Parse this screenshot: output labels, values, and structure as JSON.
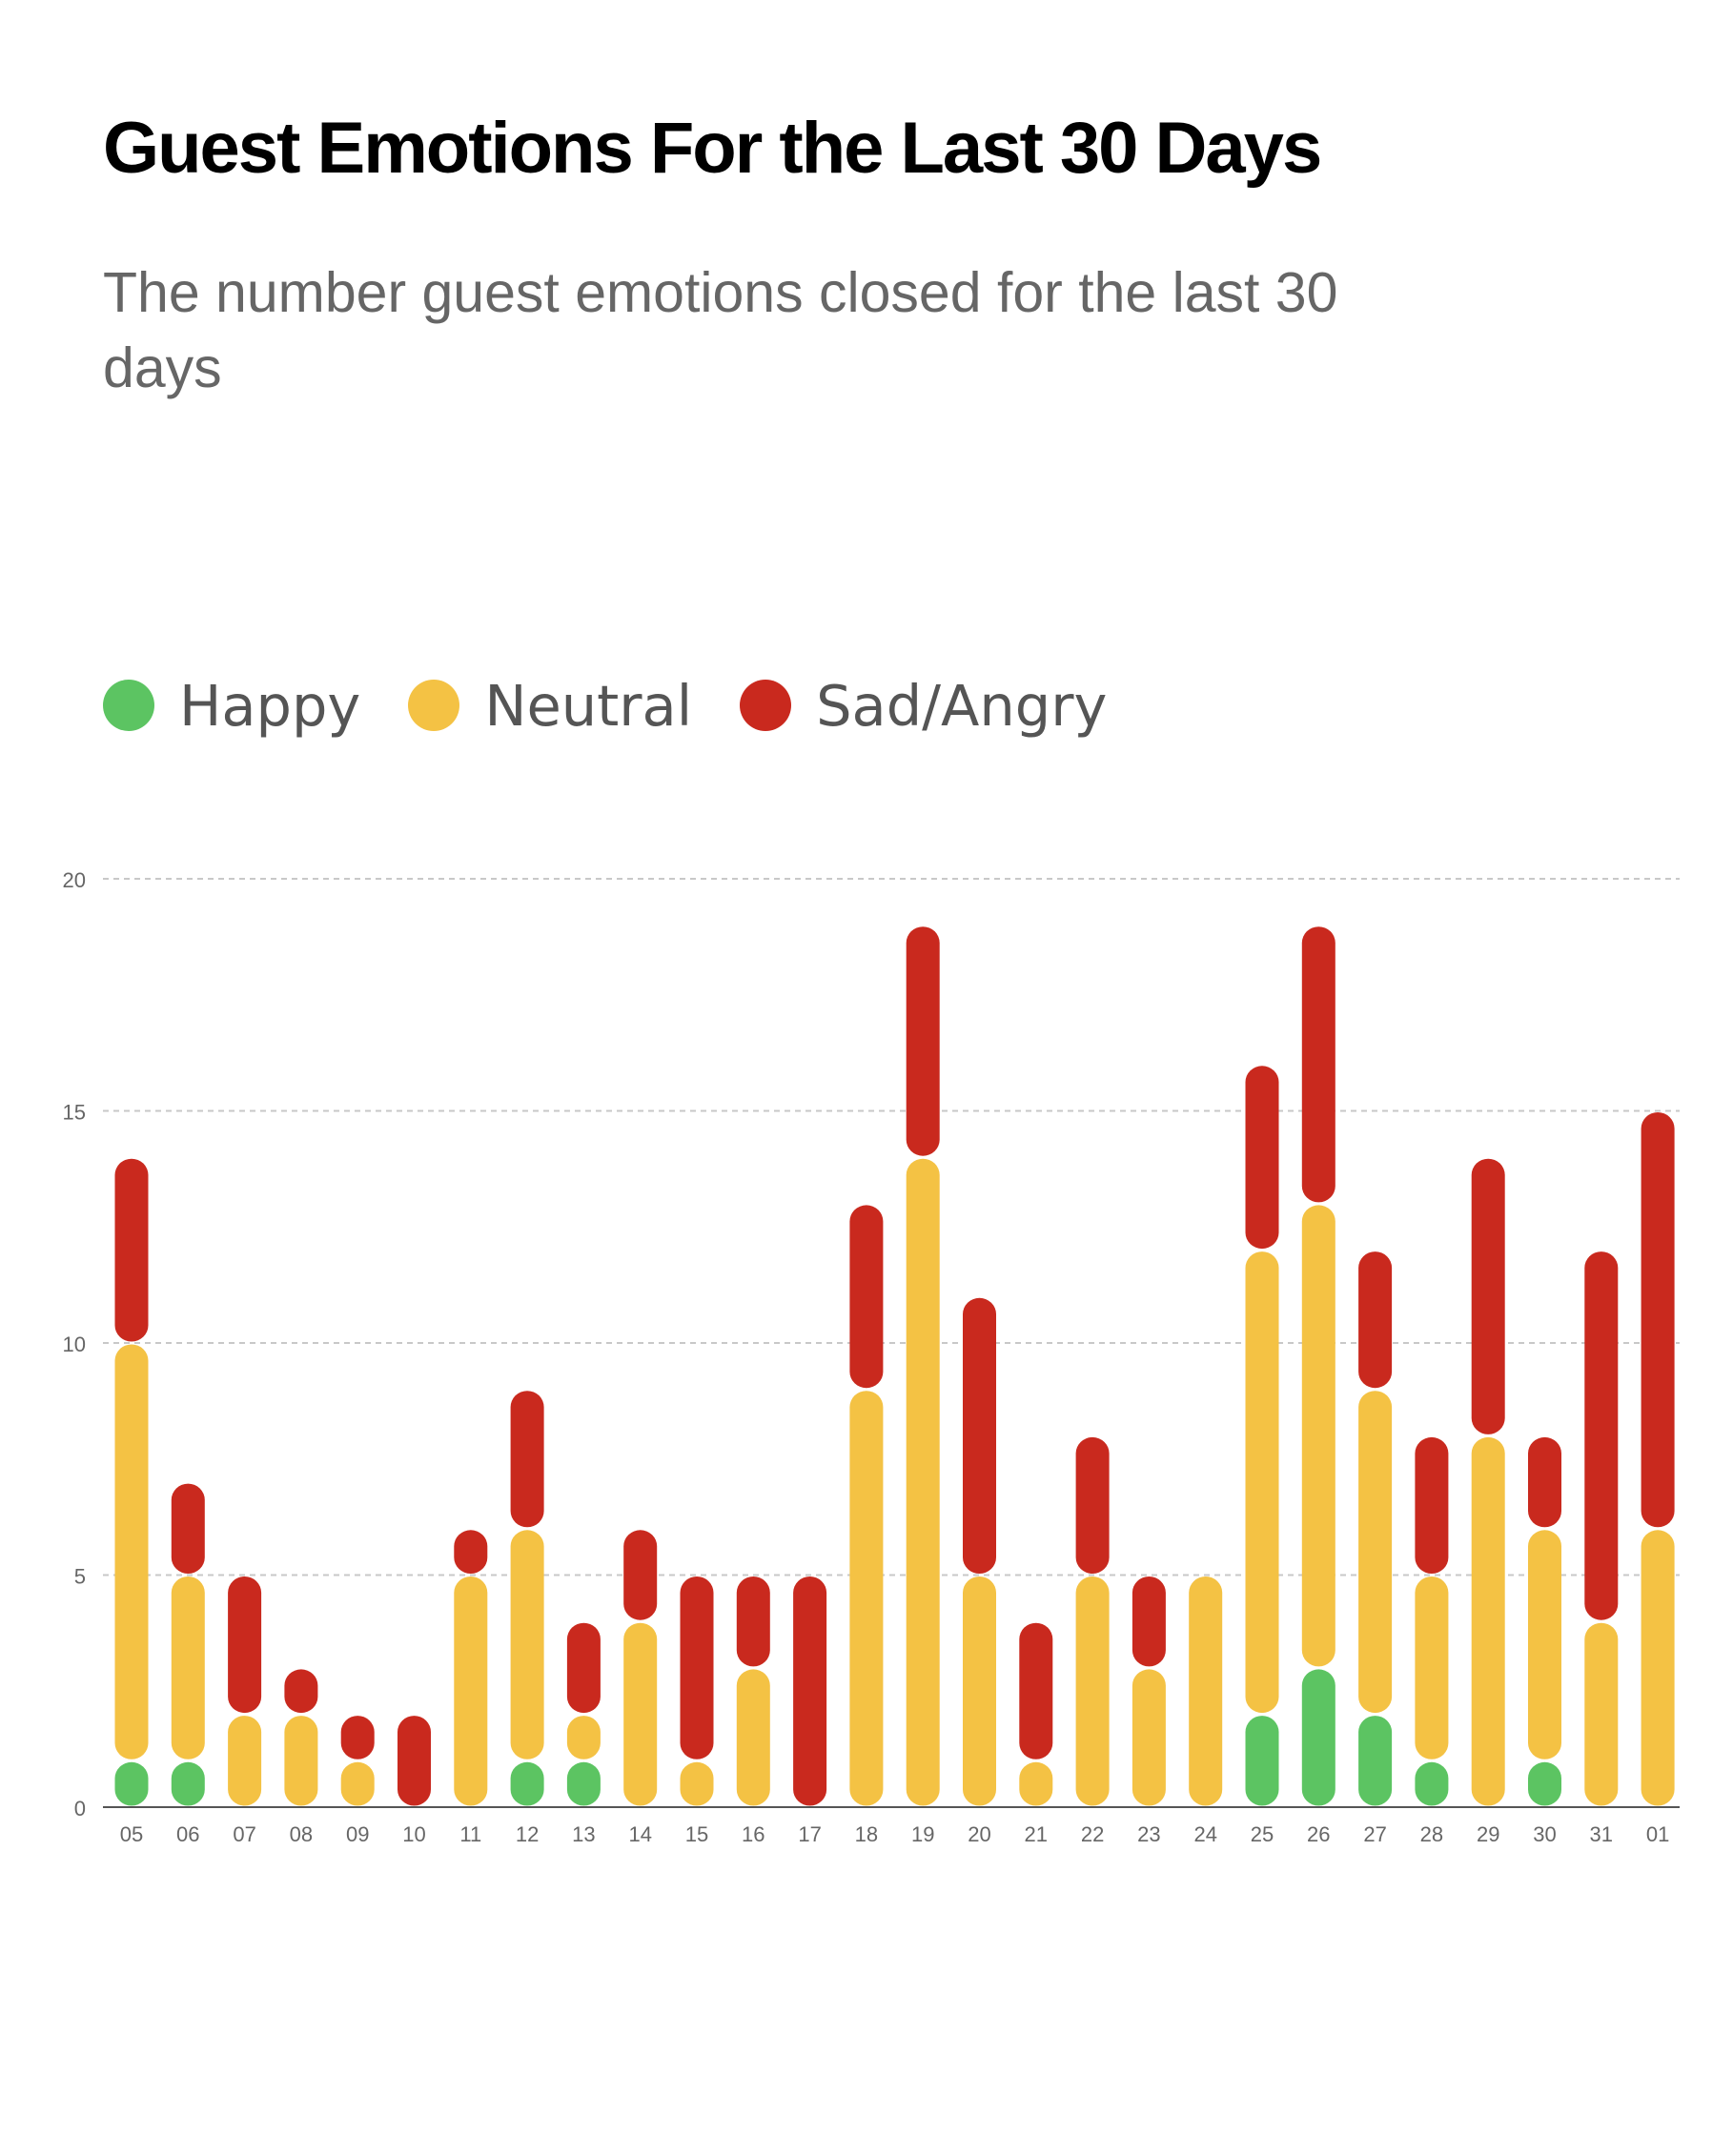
{
  "title": "Guest Emotions For the Last 30 Days",
  "subtitle": "The number guest emotions closed for the last 30 days",
  "legend": [
    {
      "label": "Happy",
      "color": "#5cc462"
    },
    {
      "label": "Neutral",
      "color": "#f4c244"
    },
    {
      "label": "Sad/Angry",
      "color": "#c9291e"
    }
  ],
  "chart_data": {
    "type": "bar",
    "stacked": true,
    "title": "Guest Emotions For the Last 30 Days",
    "subtitle": "The number guest emotions closed for the last 30 days",
    "xlabel": "",
    "ylabel": "",
    "ylim": [
      0,
      20
    ],
    "yticks": [
      0,
      5,
      10,
      15,
      20
    ],
    "grid": "horizontal-dashed",
    "legend_position": "top-left",
    "categories": [
      "05",
      "06",
      "07",
      "08",
      "09",
      "10",
      "11",
      "12",
      "13",
      "14",
      "15",
      "16",
      "17",
      "18",
      "19",
      "20",
      "21",
      "22",
      "23",
      "24",
      "25",
      "26",
      "27",
      "28",
      "29",
      "30",
      "31",
      "01"
    ],
    "series": [
      {
        "name": "Happy",
        "color": "#5cc462",
        "values": [
          1,
          1,
          0,
          0,
          0,
          0,
          0,
          1,
          1,
          0,
          0,
          0,
          0,
          0,
          0,
          0,
          0,
          0,
          0,
          0,
          2,
          3,
          2,
          1,
          0,
          1,
          0,
          0
        ]
      },
      {
        "name": "Neutral",
        "color": "#f4c244",
        "values": [
          9,
          4,
          2,
          2,
          1,
          0,
          5,
          5,
          1,
          4,
          1,
          3,
          0,
          9,
          14,
          5,
          1,
          5,
          3,
          5,
          10,
          10,
          7,
          4,
          8,
          5,
          4,
          6
        ]
      },
      {
        "name": "Sad/Angry",
        "color": "#c9291e",
        "values": [
          4,
          2,
          3,
          1,
          1,
          2,
          1,
          3,
          2,
          2,
          4,
          2,
          5,
          4,
          5,
          6,
          3,
          3,
          2,
          0,
          4,
          6,
          3,
          3,
          6,
          2,
          8,
          9
        ]
      }
    ]
  }
}
